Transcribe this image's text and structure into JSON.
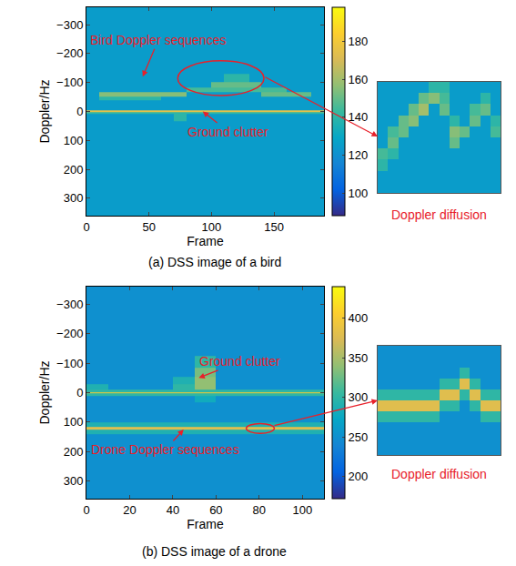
{
  "chart_data": [
    {
      "type": "heatmap",
      "title": "(a) DSS image of a bird",
      "x_label": "Frame",
      "y_label": "Doppler/Hz",
      "x": [
        5,
        15,
        25,
        35,
        45,
        55,
        65,
        75,
        85,
        95,
        105,
        115,
        125,
        135,
        145,
        155,
        165,
        175,
        185
      ],
      "y": [
        -350,
        -300,
        -250,
        -200,
        -150,
        -110,
        -90,
        -75,
        -60,
        -45,
        -30,
        -15,
        -5,
        0,
        5,
        15,
        50,
        100,
        150,
        200,
        250,
        300,
        350
      ],
      "cells": [
        [
          125,
          125,
          125,
          125,
          125,
          125,
          125,
          125,
          125,
          125,
          125,
          125,
          125,
          125,
          125,
          125,
          125,
          125,
          125
        ],
        [
          125,
          125,
          125,
          125,
          125,
          125,
          125,
          125,
          125,
          125,
          125,
          125,
          125,
          125,
          125,
          125,
          125,
          125,
          125
        ],
        [
          125,
          125,
          125,
          125,
          125,
          125,
          125,
          125,
          125,
          125,
          125,
          125,
          125,
          125,
          125,
          125,
          125,
          125,
          125
        ],
        [
          125,
          125,
          125,
          125,
          125,
          125,
          125,
          125,
          125,
          125,
          125,
          125,
          125,
          125,
          125,
          125,
          125,
          125,
          125
        ],
        [
          125,
          125,
          125,
          125,
          125,
          125,
          125,
          125,
          125,
          125,
          125,
          125,
          125,
          125,
          125,
          125,
          125,
          125,
          125
        ],
        [
          125,
          125,
          125,
          125,
          125,
          125,
          125,
          125,
          125,
          125,
          125,
          140,
          140,
          125,
          125,
          125,
          125,
          125,
          125
        ],
        [
          125,
          125,
          125,
          125,
          125,
          125,
          125,
          125,
          125,
          125,
          150,
          150,
          150,
          150,
          125,
          125,
          125,
          125,
          125
        ],
        [
          125,
          125,
          125,
          125,
          125,
          125,
          125,
          125,
          145,
          145,
          145,
          145,
          145,
          145,
          145,
          145,
          125,
          125,
          125
        ],
        [
          125,
          155,
          155,
          155,
          155,
          155,
          155,
          155,
          125,
          125,
          125,
          125,
          125,
          125,
          150,
          150,
          150,
          150,
          125
        ],
        [
          125,
          140,
          140,
          140,
          140,
          140,
          125,
          125,
          125,
          125,
          125,
          125,
          125,
          125,
          125,
          125,
          125,
          125,
          125
        ],
        [
          125,
          125,
          125,
          125,
          125,
          125,
          125,
          125,
          125,
          125,
          125,
          125,
          125,
          125,
          125,
          125,
          125,
          125,
          125
        ],
        [
          125,
          125,
          125,
          125,
          125,
          125,
          125,
          125,
          125,
          125,
          125,
          125,
          125,
          125,
          125,
          125,
          125,
          125,
          125
        ],
        [
          125,
          125,
          125,
          125,
          125,
          125,
          125,
          125,
          125,
          125,
          125,
          125,
          125,
          125,
          125,
          125,
          125,
          125,
          125
        ],
        [
          175,
          175,
          175,
          175,
          175,
          175,
          175,
          175,
          175,
          175,
          175,
          175,
          175,
          175,
          175,
          175,
          175,
          175,
          175
        ],
        [
          140,
          140,
          140,
          140,
          140,
          140,
          140,
          140,
          140,
          140,
          140,
          140,
          140,
          140,
          140,
          140,
          140,
          140,
          140
        ],
        [
          125,
          125,
          125,
          125,
          125,
          125,
          125,
          140,
          125,
          125,
          125,
          125,
          125,
          125,
          125,
          125,
          125,
          125,
          125
        ],
        [
          125,
          125,
          125,
          125,
          125,
          125,
          125,
          125,
          125,
          125,
          125,
          125,
          125,
          125,
          125,
          125,
          125,
          125,
          125
        ],
        [
          125,
          125,
          125,
          125,
          125,
          125,
          125,
          125,
          125,
          125,
          125,
          125,
          125,
          125,
          125,
          125,
          125,
          125,
          125
        ],
        [
          125,
          125,
          125,
          125,
          125,
          125,
          125,
          125,
          125,
          125,
          125,
          125,
          125,
          125,
          125,
          125,
          125,
          125,
          125
        ],
        [
          125,
          125,
          125,
          125,
          125,
          125,
          125,
          125,
          125,
          125,
          125,
          125,
          125,
          125,
          125,
          125,
          125,
          125,
          125
        ],
        [
          125,
          125,
          125,
          125,
          125,
          125,
          125,
          125,
          125,
          125,
          125,
          125,
          125,
          125,
          125,
          125,
          125,
          125,
          125
        ],
        [
          125,
          125,
          125,
          125,
          125,
          125,
          125,
          125,
          125,
          125,
          125,
          125,
          125,
          125,
          125,
          125,
          125,
          125,
          125
        ],
        [
          125,
          125,
          125,
          125,
          125,
          125,
          125,
          125,
          125,
          125,
          125,
          125,
          125,
          125,
          125,
          125,
          125,
          125,
          125
        ]
      ],
      "xlim": [
        0,
        190
      ],
      "xticks": [
        0,
        50,
        100,
        150
      ],
      "ylim": [
        360,
        -360
      ],
      "yticks": [
        {
          "value": -300,
          "label": "−300"
        },
        {
          "value": -200,
          "label": "−200"
        },
        {
          "value": -100,
          "label": "−100"
        },
        0,
        100,
        200,
        300
      ],
      "colorbar": {
        "range": [
          88,
          198
        ],
        "ticks": [
          100,
          120,
          140,
          160,
          180
        ]
      },
      "annotations": [
        "Bird Doppler sequences",
        "Ground clutter"
      ],
      "inset": {
        "label": "Doppler diffusion",
        "tick_labels": false,
        "cells": [
          [
            125,
            125,
            125,
            125,
            125,
            140,
            140,
            125,
            125,
            125,
            125,
            125
          ],
          [
            125,
            125,
            125,
            125,
            150,
            155,
            145,
            125,
            125,
            125,
            140,
            125
          ],
          [
            125,
            125,
            125,
            150,
            160,
            125,
            150,
            125,
            125,
            145,
            150,
            125
          ],
          [
            125,
            125,
            150,
            155,
            125,
            125,
            125,
            140,
            125,
            150,
            125,
            140
          ],
          [
            125,
            145,
            150,
            125,
            125,
            125,
            125,
            155,
            150,
            125,
            125,
            145
          ],
          [
            125,
            150,
            125,
            125,
            125,
            125,
            125,
            150,
            125,
            125,
            125,
            125
          ],
          [
            145,
            140,
            125,
            125,
            125,
            125,
            125,
            125,
            125,
            125,
            125,
            125
          ],
          [
            140,
            125,
            125,
            125,
            125,
            125,
            125,
            125,
            125,
            125,
            125,
            125
          ],
          [
            125,
            125,
            125,
            125,
            125,
            125,
            125,
            125,
            125,
            125,
            125,
            125
          ],
          [
            125,
            125,
            125,
            125,
            125,
            125,
            125,
            125,
            125,
            125,
            125,
            125
          ]
        ]
      }
    },
    {
      "type": "heatmap",
      "title": "(b) DSS image of a drone",
      "x_label": "Frame",
      "y_label": "Doppler/Hz",
      "x": [
        5,
        15,
        25,
        35,
        45,
        55,
        65,
        75,
        85,
        95,
        105
      ],
      "y": [
        -350,
        -300,
        -250,
        -200,
        -150,
        -100,
        -70,
        -40,
        -15,
        -5,
        0,
        5,
        15,
        50,
        90,
        110,
        120,
        130,
        150,
        200,
        250,
        300,
        350
      ],
      "cells": [
        [
          250,
          250,
          250,
          250,
          250,
          250,
          250,
          250,
          250,
          250,
          250
        ],
        [
          250,
          250,
          250,
          250,
          250,
          250,
          250,
          250,
          250,
          250,
          250
        ],
        [
          250,
          250,
          250,
          250,
          250,
          250,
          250,
          250,
          250,
          250,
          250
        ],
        [
          250,
          250,
          250,
          250,
          250,
          250,
          250,
          250,
          250,
          250,
          250
        ],
        [
          250,
          250,
          250,
          250,
          250,
          250,
          250,
          250,
          250,
          250,
          250
        ],
        [
          250,
          250,
          250,
          250,
          250,
          300,
          250,
          250,
          250,
          250,
          250
        ],
        [
          250,
          250,
          250,
          250,
          250,
          330,
          250,
          250,
          250,
          250,
          250
        ],
        [
          250,
          250,
          250,
          250,
          290,
          340,
          250,
          250,
          250,
          250,
          250
        ],
        [
          290,
          250,
          250,
          250,
          300,
          340,
          250,
          250,
          250,
          250,
          250
        ],
        [
          300,
          300,
          300,
          300,
          300,
          300,
          300,
          300,
          300,
          300,
          300
        ],
        [
          400,
          400,
          400,
          400,
          400,
          400,
          400,
          400,
          400,
          400,
          400
        ],
        [
          300,
          300,
          300,
          300,
          300,
          300,
          300,
          300,
          300,
          300,
          300
        ],
        [
          250,
          250,
          250,
          250,
          250,
          280,
          250,
          250,
          250,
          250,
          250
        ],
        [
          250,
          250,
          250,
          250,
          250,
          250,
          250,
          250,
          250,
          250,
          250
        ],
        [
          250,
          250,
          250,
          250,
          250,
          250,
          250,
          250,
          250,
          250,
          250
        ],
        [
          290,
          290,
          290,
          290,
          290,
          290,
          290,
          290,
          290,
          290,
          290
        ],
        [
          380,
          380,
          380,
          380,
          380,
          380,
          380,
          380,
          380,
          380,
          380
        ],
        [
          290,
          290,
          290,
          290,
          290,
          290,
          290,
          290,
          290,
          290,
          290
        ],
        [
          250,
          250,
          250,
          250,
          250,
          250,
          250,
          250,
          250,
          250,
          250
        ],
        [
          250,
          250,
          250,
          250,
          250,
          250,
          250,
          250,
          250,
          250,
          250
        ],
        [
          250,
          250,
          250,
          250,
          250,
          250,
          250,
          250,
          250,
          250,
          250
        ],
        [
          250,
          250,
          250,
          250,
          250,
          250,
          250,
          250,
          250,
          250,
          250
        ],
        [
          250,
          250,
          250,
          250,
          250,
          250,
          250,
          250,
          250,
          250,
          250
        ]
      ],
      "xlim": [
        0,
        110
      ],
      "xticks": [
        0,
        20,
        40,
        60,
        80,
        100
      ],
      "ylim": [
        360,
        -360
      ],
      "yticks": [
        {
          "value": -300,
          "label": "−300"
        },
        {
          "value": -200,
          "label": "−200"
        },
        {
          "value": -100,
          "label": "−100"
        },
        0,
        100,
        200,
        300
      ],
      "colorbar": {
        "range": [
          172,
          440
        ],
        "ticks": [
          200,
          250,
          300,
          350,
          400
        ]
      },
      "annotations": [
        "Ground clutter",
        "Drone Doppler sequences"
      ],
      "inset": {
        "label": "Doppler diffusion",
        "tick_labels": false,
        "cells": [
          [
            250,
            250,
            250,
            250,
            250,
            250,
            250,
            250,
            250,
            250,
            250,
            250
          ],
          [
            250,
            250,
            250,
            250,
            250,
            250,
            250,
            250,
            250,
            250,
            250,
            250
          ],
          [
            250,
            250,
            250,
            250,
            250,
            250,
            250,
            250,
            300,
            250,
            250,
            250
          ],
          [
            250,
            250,
            250,
            250,
            250,
            250,
            300,
            300,
            380,
            300,
            250,
            250
          ],
          [
            300,
            300,
            300,
            300,
            300,
            300,
            380,
            380,
            300,
            380,
            300,
            300
          ],
          [
            380,
            380,
            380,
            380,
            380,
            380,
            300,
            300,
            250,
            300,
            380,
            380
          ],
          [
            300,
            300,
            300,
            300,
            300,
            300,
            250,
            250,
            250,
            250,
            300,
            300
          ],
          [
            250,
            250,
            250,
            250,
            250,
            250,
            250,
            250,
            250,
            250,
            250,
            250
          ],
          [
            250,
            250,
            250,
            250,
            250,
            250,
            250,
            250,
            250,
            250,
            250,
            250
          ],
          [
            250,
            250,
            250,
            250,
            250,
            250,
            250,
            250,
            250,
            250,
            250,
            250
          ]
        ]
      }
    }
  ]
}
